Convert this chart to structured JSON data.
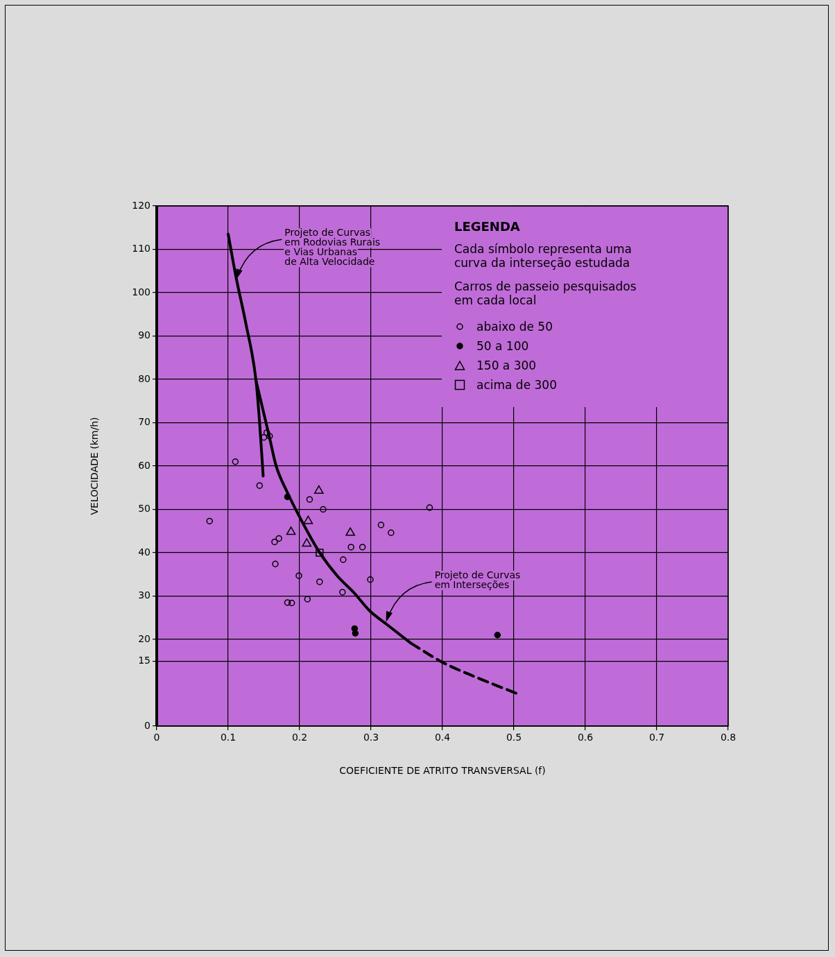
{
  "chart_data": {
    "type": "scatter",
    "xlabel": "COEFICIENTE DE ATRITO TRANSVERSAL (f)",
    "ylabel": "VELOCIDADE (km/h)",
    "legend_title": "LEGENDA",
    "xlim": [
      0,
      0.8
    ],
    "xticks": [
      0,
      0.1,
      0.2,
      0.3,
      0.4,
      0.5,
      0.6,
      0.7,
      0.8
    ],
    "ylim": [
      0,
      120
    ],
    "yticks": [
      0,
      15,
      20,
      30,
      40,
      50,
      60,
      70,
      80,
      90,
      100,
      110,
      120
    ],
    "grid": true,
    "legend": "top right",
    "series": [
      {
        "name": "abaixo de 50",
        "type": "scatter",
        "marker": "circle",
        "color": "#000000",
        "x": [
          0.074,
          0.11,
          0.144,
          0.15,
          0.154,
          0.158,
          0.214,
          0.233,
          0.382,
          0.314,
          0.328,
          0.165,
          0.171,
          0.272,
          0.288,
          0.166,
          0.261,
          0.199,
          0.228,
          0.299,
          0.26,
          0.183,
          0.189,
          0.211
        ],
        "values": [
          47.3,
          61,
          55.5,
          66.6,
          67.7,
          66.9,
          52.3,
          50,
          50.4,
          46.4,
          44.6,
          42.5,
          43.3,
          41.3,
          41.3,
          37.4,
          38.4,
          34.7,
          33.3,
          33.8,
          30.9,
          28.5,
          28.4,
          29.3
        ]
      },
      {
        "name": "50 a 100",
        "type": "scatter",
        "marker": "dot",
        "color": "#000000",
        "x": [
          0.183,
          0.277,
          0.278,
          0.477
        ],
        "values": [
          52.9,
          22.5,
          21.4,
          21
        ]
      },
      {
        "name": "150 a 300",
        "type": "scatter",
        "marker": "triangle",
        "color": "#000000",
        "x": [
          0.227,
          0.212,
          0.188,
          0.271,
          0.21
        ],
        "values": [
          54.3,
          47.3,
          44.8,
          44.6,
          42.1
        ]
      },
      {
        "name": "acima de 300",
        "type": "scatter",
        "marker": "square",
        "color": "#000000",
        "x": [
          0.228
        ],
        "values": [
          40
        ]
      },
      {
        "type": "line",
        "line_style": "solid",
        "color": "#000000",
        "x": [
          0.1,
          0.111,
          0.125,
          0.139,
          0.144,
          0.149
        ],
        "values": [
          113.5,
          103.6,
          92.7,
          79.7,
          70,
          57.7
        ]
      },
      {
        "type": "line",
        "line_style": "solid",
        "color": "#000000",
        "x": [
          0.139,
          0.158,
          0.167,
          0.182,
          0.205,
          0.227,
          0.253,
          0.276,
          0.298,
          0.321,
          0.356
        ],
        "values": [
          79.7,
          66.5,
          60.1,
          54.2,
          46.7,
          40.3,
          34.6,
          30.8,
          26.6,
          23.6,
          19.1
        ]
      },
      {
        "type": "line",
        "line_style": "dashed",
        "color": "#000000",
        "x": [
          0.356,
          0.399,
          0.448,
          0.509
        ],
        "values": [
          19.1,
          14.8,
          11.2,
          7.2
        ]
      }
    ],
    "annotations": [
      "Cada símbolo representa uma\ncurva da interseção estudada",
      "Carros de passeio pesquisados\nem cada local",
      {
        "text": "Projeto de Curvas\nem Rodovias Rurais\ne Vias Urbanas\nde Alta Velocidade",
        "x": 0.111,
        "y": 103
      },
      {
        "text": "Projeto de Curvas\nem Interseções",
        "x": 0.321,
        "y": 24
      }
    ]
  }
}
